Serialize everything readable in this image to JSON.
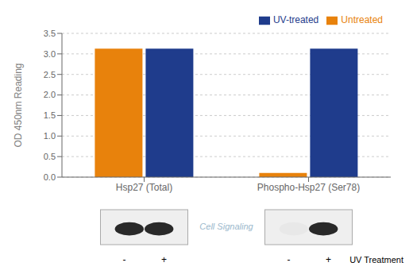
{
  "chart_data": {
    "type": "bar",
    "categories": [
      "Hsp27 (Total)",
      "Phospho-Hsp27 (Ser78)"
    ],
    "series": [
      {
        "name": "Untreated",
        "color": "#E8820C",
        "values": [
          3.13,
          0.1
        ]
      },
      {
        "name": "UV-treated",
        "color": "#1F3C8C",
        "values": [
          3.13,
          3.13
        ]
      }
    ],
    "ylabel": "OD 450nm Reading",
    "ylim": [
      0,
      3.5
    ],
    "yticks": [
      {
        "value": 0,
        "label": "0.0"
      },
      0.5,
      {
        "value": 1.0,
        "label": "1.0"
      },
      1.5,
      {
        "value": 2.0,
        "label": "2.0"
      },
      2.5,
      {
        "value": 3.0,
        "label": "3.0"
      },
      3.5
    ],
    "grid": true,
    "legend": "upper right",
    "annotations": [
      "-",
      "+",
      "UV Treatment",
      "Cell Signaling"
    ]
  }
}
